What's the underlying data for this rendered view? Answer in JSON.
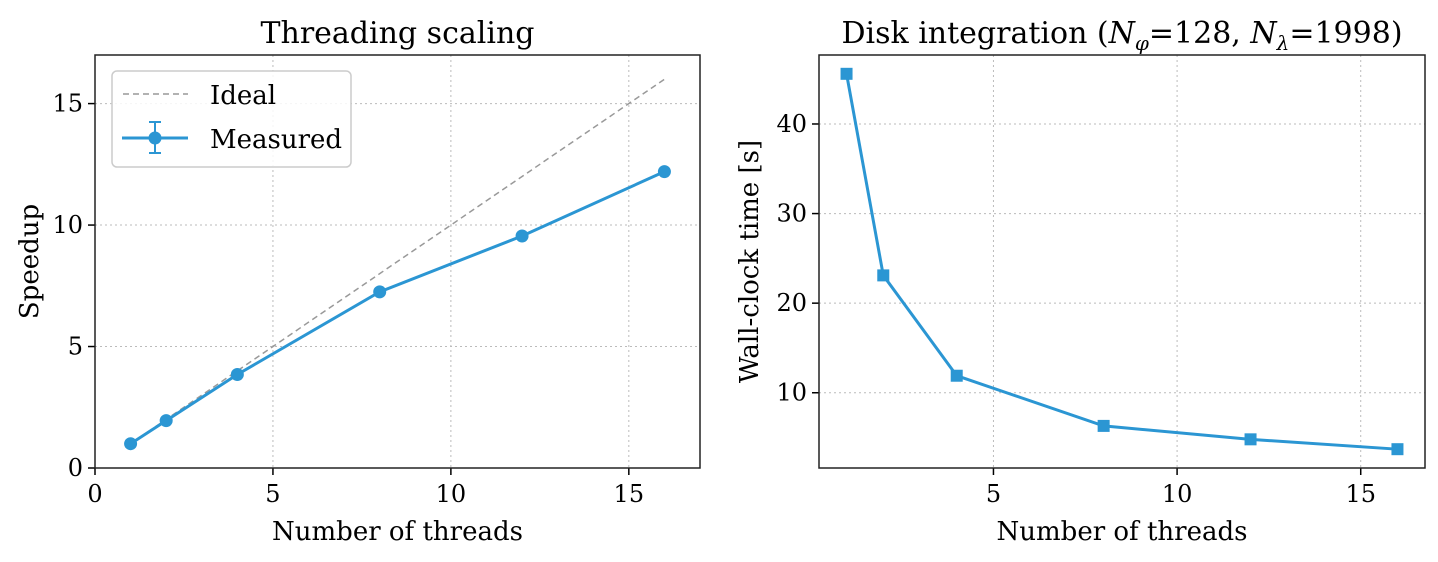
{
  "chart_data": [
    {
      "type": "line",
      "title": "Threading scaling",
      "xlabel": "Number of threads",
      "ylabel": "Speedup",
      "xlim": [
        0,
        17
      ],
      "ylim": [
        0,
        17
      ],
      "xticks": [
        0,
        5,
        10,
        15
      ],
      "yticks": [
        0,
        5,
        10,
        15
      ],
      "grid": true,
      "legend_position": "top-left",
      "series": [
        {
          "name": "Ideal",
          "style": "dashed",
          "color": "#999999",
          "x": [
            1,
            16
          ],
          "y": [
            1,
            16
          ]
        },
        {
          "name": "Measured",
          "style": "solid-circle-errorbar",
          "color": "#2b96d3",
          "x": [
            1,
            2,
            4,
            8,
            12,
            16
          ],
          "y": [
            1.0,
            1.95,
            3.85,
            7.25,
            9.55,
            12.2
          ]
        }
      ]
    },
    {
      "type": "line",
      "title": "Disk integration (N_φ=128, N_λ=1998)",
      "title_parts": {
        "prefix": "Disk integration (",
        "n": "N",
        "sub1": "φ",
        "val1": "=128, ",
        "sub2": "λ",
        "val2": "=1998)"
      },
      "xlabel": "Number of threads",
      "ylabel": "Wall-clock time [s]",
      "xlim": [
        0.25,
        16.75
      ],
      "ylim": [
        1.6,
        47.7
      ],
      "xticks": [
        5,
        10,
        15
      ],
      "yticks": [
        10,
        20,
        30,
        40
      ],
      "grid": true,
      "series": [
        {
          "style": "solid-square",
          "color": "#2b96d3",
          "x": [
            1,
            2,
            4,
            8,
            12,
            16
          ],
          "y": [
            45.6,
            23.1,
            11.9,
            6.3,
            4.8,
            3.7
          ]
        }
      ]
    }
  ]
}
